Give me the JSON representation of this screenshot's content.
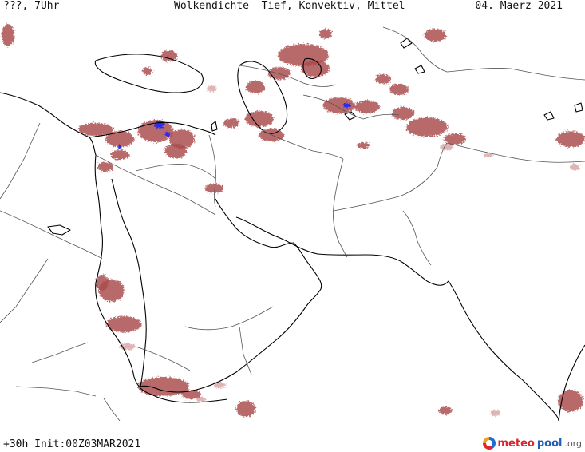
{
  "header": {
    "left": "???, 7Uhr",
    "center": "Wolkendichte  Tief, Konvektiv, Mittel",
    "right": "04. Maerz 2021"
  },
  "footer": {
    "left": "+30h Init:00Z03MAR2021"
  },
  "logo": {
    "meteo": "meteo",
    "pool": "pool",
    "org": ".org"
  },
  "colors": {
    "background": "#ffffff",
    "coastline": "#000000",
    "border": "#555555",
    "cloud_dense": "#a84a4a",
    "cloud_light": "#d6a3a3",
    "convective": "#2a2af0"
  }
}
